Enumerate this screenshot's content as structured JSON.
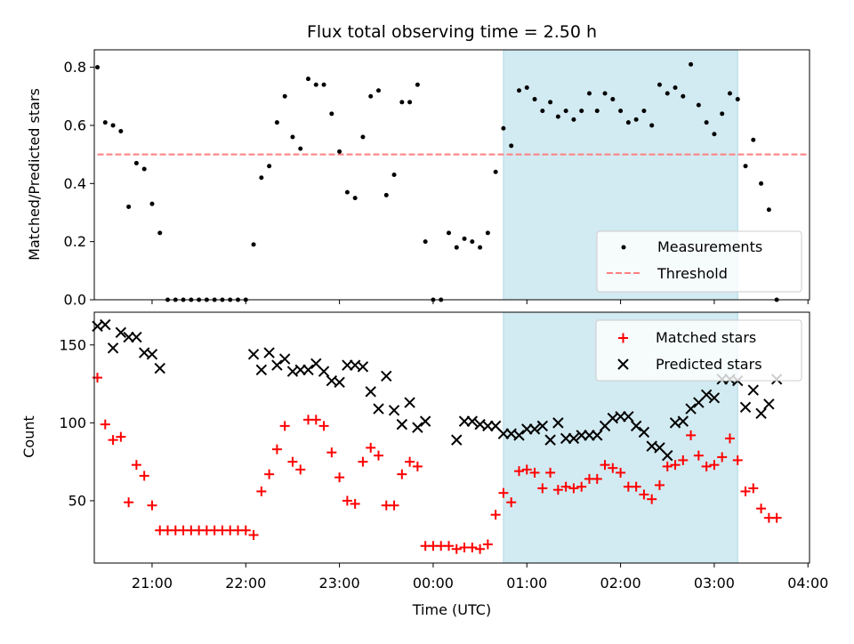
{
  "figure": {
    "title": "Flux total observing time = 2.50 h",
    "xlabel": "Time (UTC)"
  },
  "colors": {
    "measurements": "#000000",
    "threshold": "#ff7f7f",
    "matched": "#ff0000",
    "predicted": "#000000",
    "shade": "#add8e6"
  },
  "chart_data": [
    {
      "type": "scatter",
      "panel": "top",
      "ylabel": "Matched/Predicted stars",
      "ylim": [
        0,
        0.86
      ],
      "yticks": [
        0.0,
        0.2,
        0.4,
        0.6,
        0.8
      ],
      "ytick_labels": [
        "0.0",
        "0.2",
        "0.4",
        "0.6",
        "0.8"
      ],
      "xlim": [
        "20:23",
        "04:01"
      ],
      "xticks": [
        "21:00",
        "22:00",
        "23:00",
        "00:00",
        "01:00",
        "02:00",
        "03:00",
        "04:00"
      ],
      "shaded_region": [
        "00:45",
        "03:15"
      ],
      "legend": {
        "position": "lower-right",
        "entries": [
          "Measurements",
          "Threshold"
        ]
      },
      "threshold": {
        "name": "Threshold",
        "value": 0.5,
        "x": [
          "20:25",
          "04:00"
        ]
      },
      "series": [
        {
          "name": "Measurements",
          "marker": "dot",
          "points": [
            [
              "20:25",
              0.8
            ],
            [
              "20:30",
              0.61
            ],
            [
              "20:35",
              0.6
            ],
            [
              "20:40",
              0.58
            ],
            [
              "20:45",
              0.32
            ],
            [
              "20:50",
              0.47
            ],
            [
              "20:55",
              0.45
            ],
            [
              "21:00",
              0.33
            ],
            [
              "21:05",
              0.23
            ],
            [
              "21:10",
              0.0
            ],
            [
              "21:15",
              0.0
            ],
            [
              "21:20",
              0.0
            ],
            [
              "21:25",
              0.0
            ],
            [
              "21:30",
              0.0
            ],
            [
              "21:35",
              0.0
            ],
            [
              "21:40",
              0.0
            ],
            [
              "21:45",
              0.0
            ],
            [
              "21:50",
              0.0
            ],
            [
              "21:55",
              0.0
            ],
            [
              "22:00",
              0.0
            ],
            [
              "22:05",
              0.19
            ],
            [
              "22:10",
              0.42
            ],
            [
              "22:15",
              0.46
            ],
            [
              "22:20",
              0.61
            ],
            [
              "22:25",
              0.7
            ],
            [
              "22:30",
              0.56
            ],
            [
              "22:35",
              0.52
            ],
            [
              "22:40",
              0.76
            ],
            [
              "22:45",
              0.74
            ],
            [
              "22:50",
              0.74
            ],
            [
              "22:55",
              0.64
            ],
            [
              "23:00",
              0.51
            ],
            [
              "23:05",
              0.37
            ],
            [
              "23:10",
              0.35
            ],
            [
              "23:15",
              0.56
            ],
            [
              "23:20",
              0.7
            ],
            [
              "23:25",
              0.72
            ],
            [
              "23:30",
              0.36
            ],
            [
              "23:35",
              0.43
            ],
            [
              "23:40",
              0.68
            ],
            [
              "23:45",
              0.68
            ],
            [
              "23:50",
              0.74
            ],
            [
              "23:55",
              0.2
            ],
            [
              "00:00",
              0.0
            ],
            [
              "00:05",
              0.0
            ],
            [
              "00:10",
              0.23
            ],
            [
              "00:15",
              0.18
            ],
            [
              "00:20",
              0.21
            ],
            [
              "00:25",
              0.2
            ],
            [
              "00:30",
              0.18
            ],
            [
              "00:35",
              0.23
            ],
            [
              "00:40",
              0.44
            ],
            [
              "00:45",
              0.59
            ],
            [
              "00:50",
              0.53
            ],
            [
              "00:55",
              0.72
            ],
            [
              "01:00",
              0.73
            ],
            [
              "01:05",
              0.69
            ],
            [
              "01:10",
              0.65
            ],
            [
              "01:15",
              0.68
            ],
            [
              "01:20",
              0.63
            ],
            [
              "01:25",
              0.65
            ],
            [
              "01:30",
              0.62
            ],
            [
              "01:35",
              0.65
            ],
            [
              "01:40",
              0.71
            ],
            [
              "01:45",
              0.65
            ],
            [
              "01:50",
              0.71
            ],
            [
              "01:55",
              0.69
            ],
            [
              "02:00",
              0.65
            ],
            [
              "02:05",
              0.61
            ],
            [
              "02:10",
              0.62
            ],
            [
              "02:15",
              0.65
            ],
            [
              "02:20",
              0.6
            ],
            [
              "02:25",
              0.74
            ],
            [
              "02:30",
              0.71
            ],
            [
              "02:35",
              0.73
            ],
            [
              "02:40",
              0.7
            ],
            [
              "02:45",
              0.81
            ],
            [
              "02:50",
              0.67
            ],
            [
              "02:55",
              0.61
            ],
            [
              "03:00",
              0.57
            ],
            [
              "03:05",
              0.64
            ],
            [
              "03:10",
              0.71
            ],
            [
              "03:15",
              0.69
            ],
            [
              "03:20",
              0.46
            ],
            [
              "03:25",
              0.55
            ],
            [
              "03:30",
              0.4
            ],
            [
              "03:35",
              0.31
            ],
            [
              "03:40",
              0.0
            ]
          ]
        }
      ]
    },
    {
      "type": "scatter",
      "panel": "bottom",
      "ylabel": "Count",
      "ylim": [
        10,
        171
      ],
      "yticks": [
        50,
        100,
        150
      ],
      "ytick_labels": [
        "50",
        "100",
        "150"
      ],
      "xlim": [
        "20:23",
        "04:01"
      ],
      "xticks": [
        "21:00",
        "22:00",
        "23:00",
        "00:00",
        "01:00",
        "02:00",
        "03:00",
        "04:00"
      ],
      "xtick_labels": [
        "21:00",
        "22:00",
        "23:00",
        "00:00",
        "01:00",
        "02:00",
        "03:00",
        "04:00"
      ],
      "shaded_region": [
        "00:45",
        "03:15"
      ],
      "legend": {
        "position": "upper-right",
        "entries": [
          "Matched stars",
          "Predicted stars"
        ]
      },
      "series": [
        {
          "name": "Matched stars",
          "marker": "plus",
          "points": [
            [
              "20:25",
              129
            ],
            [
              "20:30",
              99
            ],
            [
              "20:35",
              89
            ],
            [
              "20:40",
              91
            ],
            [
              "20:45",
              49
            ],
            [
              "20:50",
              73
            ],
            [
              "20:55",
              66
            ],
            [
              "21:00",
              47
            ],
            [
              "21:05",
              31
            ],
            [
              "21:10",
              31
            ],
            [
              "21:15",
              31
            ],
            [
              "21:20",
              31
            ],
            [
              "21:25",
              31
            ],
            [
              "21:30",
              31
            ],
            [
              "21:35",
              31
            ],
            [
              "21:40",
              31
            ],
            [
              "21:45",
              31
            ],
            [
              "21:50",
              31
            ],
            [
              "21:55",
              31
            ],
            [
              "22:00",
              31
            ],
            [
              "22:05",
              28
            ],
            [
              "22:10",
              56
            ],
            [
              "22:15",
              67
            ],
            [
              "22:20",
              83
            ],
            [
              "22:25",
              98
            ],
            [
              "22:30",
              75
            ],
            [
              "22:35",
              70
            ],
            [
              "22:40",
              102
            ],
            [
              "22:45",
              102
            ],
            [
              "22:50",
              98
            ],
            [
              "22:55",
              81
            ],
            [
              "23:00",
              65
            ],
            [
              "23:05",
              50
            ],
            [
              "23:10",
              48
            ],
            [
              "23:15",
              75
            ],
            [
              "23:20",
              84
            ],
            [
              "23:25",
              79
            ],
            [
              "23:30",
              47
            ],
            [
              "23:35",
              47
            ],
            [
              "23:40",
              67
            ],
            [
              "23:45",
              75
            ],
            [
              "23:50",
              72
            ],
            [
              "23:55",
              21
            ],
            [
              "00:00",
              21
            ],
            [
              "00:05",
              21
            ],
            [
              "00:10",
              21
            ],
            [
              "00:15",
              19
            ],
            [
              "00:20",
              20
            ],
            [
              "00:25",
              20
            ],
            [
              "00:30",
              19
            ],
            [
              "00:35",
              22
            ],
            [
              "00:40",
              41
            ],
            [
              "00:45",
              55
            ],
            [
              "00:50",
              49
            ],
            [
              "00:55",
              69
            ],
            [
              "01:00",
              70
            ],
            [
              "01:05",
              68
            ],
            [
              "01:10",
              58
            ],
            [
              "01:15",
              68
            ],
            [
              "01:20",
              57
            ],
            [
              "01:25",
              59
            ],
            [
              "01:30",
              58
            ],
            [
              "01:35",
              59
            ],
            [
              "01:40",
              64
            ],
            [
              "01:45",
              64
            ],
            [
              "01:50",
              73
            ],
            [
              "01:55",
              71
            ],
            [
              "02:00",
              68
            ],
            [
              "02:05",
              59
            ],
            [
              "02:10",
              59
            ],
            [
              "02:15",
              54
            ],
            [
              "02:20",
              51
            ],
            [
              "02:25",
              60
            ],
            [
              "02:30",
              72
            ],
            [
              "02:35",
              73
            ],
            [
              "02:40",
              76
            ],
            [
              "02:45",
              92
            ],
            [
              "02:50",
              79
            ],
            [
              "02:55",
              72
            ],
            [
              "03:00",
              73
            ],
            [
              "03:05",
              78
            ],
            [
              "03:10",
              90
            ],
            [
              "03:15",
              76
            ],
            [
              "03:20",
              56
            ],
            [
              "03:25",
              58
            ],
            [
              "03:30",
              45
            ],
            [
              "03:35",
              39
            ],
            [
              "03:40",
              39
            ]
          ]
        },
        {
          "name": "Predicted stars",
          "marker": "x",
          "points": [
            [
              "20:25",
              162
            ],
            [
              "20:30",
              163
            ],
            [
              "20:35",
              148
            ],
            [
              "20:40",
              158
            ],
            [
              "20:45",
              155
            ],
            [
              "20:50",
              155
            ],
            [
              "20:55",
              145
            ],
            [
              "21:00",
              144
            ],
            [
              "21:05",
              135
            ],
            [
              "22:05",
              144
            ],
            [
              "22:10",
              134
            ],
            [
              "22:15",
              145
            ],
            [
              "22:20",
              137
            ],
            [
              "22:25",
              141
            ],
            [
              "22:30",
              133
            ],
            [
              "22:35",
              134
            ],
            [
              "22:40",
              134
            ],
            [
              "22:45",
              138
            ],
            [
              "22:50",
              133
            ],
            [
              "22:55",
              127
            ],
            [
              "23:00",
              126
            ],
            [
              "23:05",
              137
            ],
            [
              "23:10",
              137
            ],
            [
              "23:15",
              136
            ],
            [
              "23:20",
              120
            ],
            [
              "23:25",
              109
            ],
            [
              "23:30",
              130
            ],
            [
              "23:35",
              108
            ],
            [
              "23:40",
              99
            ],
            [
              "23:45",
              113
            ],
            [
              "23:50",
              97
            ],
            [
              "23:55",
              101
            ],
            [
              "00:15",
              89
            ],
            [
              "00:20",
              101
            ],
            [
              "00:25",
              101
            ],
            [
              "00:30",
              99
            ],
            [
              "00:35",
              98
            ],
            [
              "00:40",
              98
            ],
            [
              "00:45",
              93
            ],
            [
              "00:50",
              93
            ],
            [
              "00:55",
              92
            ],
            [
              "01:00",
              96
            ],
            [
              "01:05",
              96
            ],
            [
              "01:10",
              98
            ],
            [
              "01:15",
              89
            ],
            [
              "01:20",
              100
            ],
            [
              "01:25",
              90
            ],
            [
              "01:30",
              90
            ],
            [
              "01:35",
              92
            ],
            [
              "01:40",
              92
            ],
            [
              "01:45",
              92
            ],
            [
              "01:50",
              98
            ],
            [
              "01:55",
              103
            ],
            [
              "02:00",
              104
            ],
            [
              "02:05",
              104
            ],
            [
              "02:10",
              98
            ],
            [
              "02:15",
              94
            ],
            [
              "02:20",
              85
            ],
            [
              "02:25",
              84
            ],
            [
              "02:30",
              79
            ],
            [
              "02:35",
              100
            ],
            [
              "02:40",
              101
            ],
            [
              "02:45",
              109
            ],
            [
              "02:50",
              113
            ],
            [
              "02:55",
              118
            ],
            [
              "03:00",
              116
            ],
            [
              "03:05",
              128
            ],
            [
              "03:10",
              128
            ],
            [
              "03:15",
              127
            ],
            [
              "03:20",
              110
            ],
            [
              "03:25",
              121
            ],
            [
              "03:30",
              106
            ],
            [
              "03:35",
              112
            ],
            [
              "03:40",
              128
            ]
          ]
        }
      ]
    }
  ]
}
